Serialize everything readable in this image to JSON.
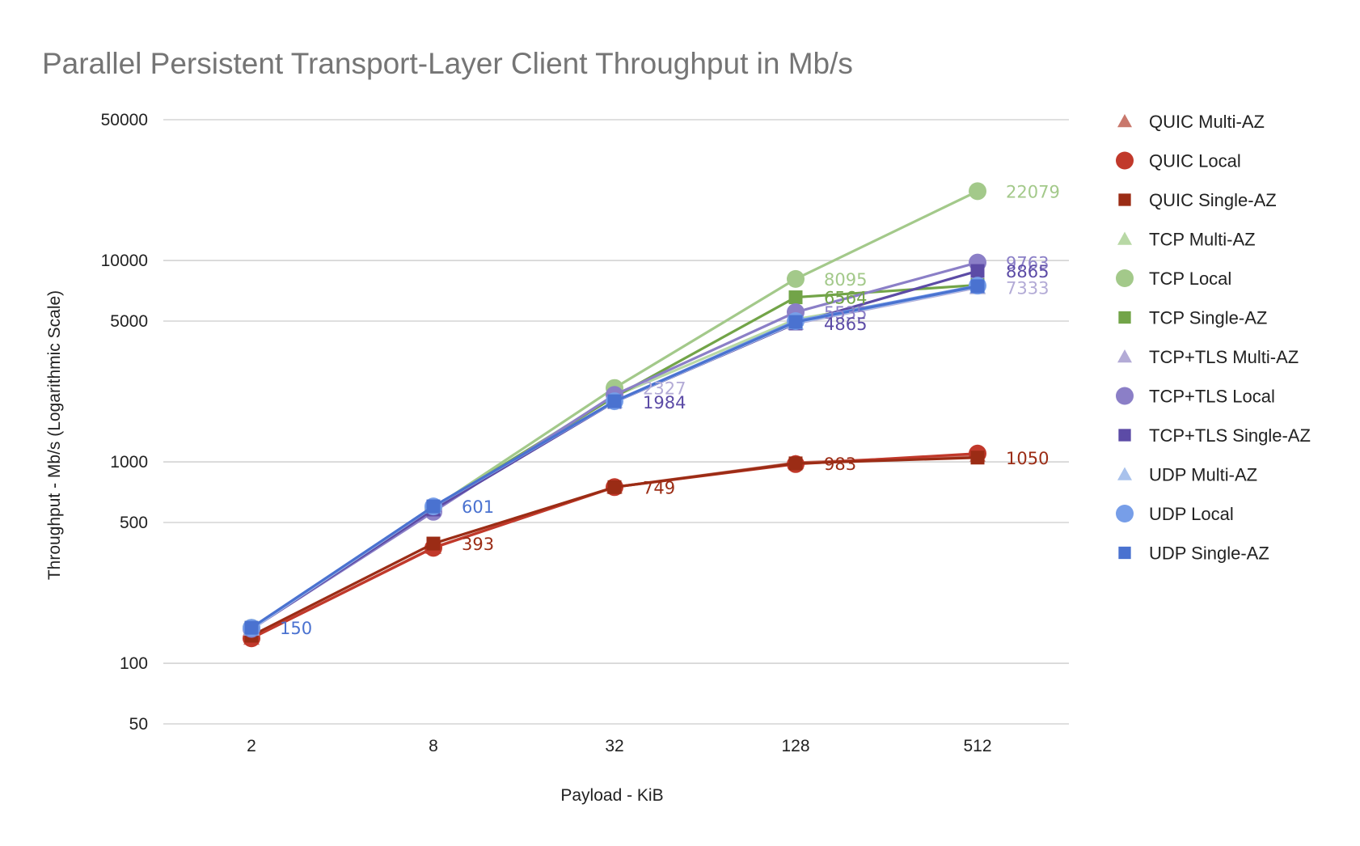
{
  "chart_data": {
    "type": "line",
    "title": "Parallel Persistent Transport-Layer Client Throughput in Mb/s",
    "xlabel": "Payload - KiB",
    "ylabel": "Throughput - Mb/s (Logarithmic Scale)",
    "yscale": "log",
    "ylim": [
      50,
      50000
    ],
    "yticks": [
      "50000",
      "10000",
      "5000",
      "1000",
      "500",
      "100",
      "50"
    ],
    "ytick_values": [
      50000,
      10000,
      5000,
      1000,
      500,
      100,
      50
    ],
    "categories": [
      "2",
      "8",
      "32",
      "128",
      "512"
    ],
    "grid": true,
    "legend_position": "right",
    "series": [
      {
        "name": "QUIC Multi-AZ",
        "marker": "triangle",
        "color": "#c9786c",
        "values": [
          133,
          376,
          749,
          990,
          1080
        ]
      },
      {
        "name": "QUIC Local",
        "marker": "circle",
        "color": "#c1392b",
        "values": [
          133,
          374,
          749,
          975,
          1100
        ]
      },
      {
        "name": "QUIC Single-AZ",
        "marker": "square",
        "color": "#9b2c15",
        "values": [
          137,
          393,
          749,
          983,
          1050
        ]
      },
      {
        "name": "TCP Multi-AZ",
        "marker": "triangle",
        "color": "#b8d8a5",
        "values": [
          150,
          590,
          2120,
          5100,
          7333
        ]
      },
      {
        "name": "TCP Local",
        "marker": "circle",
        "color": "#a3c98a",
        "values": [
          150,
          590,
          2327,
          8095,
          22079
        ]
      },
      {
        "name": "TCP Single-AZ",
        "marker": "square",
        "color": "#72a448",
        "values": [
          150,
          590,
          2100,
          6564,
          7550
        ]
      },
      {
        "name": "TCP+TLS Multi-AZ",
        "marker": "triangle",
        "color": "#b3abd6",
        "values": [
          148,
          580,
          2000,
          4865,
          7333
        ]
      },
      {
        "name": "TCP+TLS Local",
        "marker": "circle",
        "color": "#8b7fc7",
        "values": [
          148,
          565,
          2150,
          5535,
          9763
        ]
      },
      {
        "name": "TCP+TLS Single-AZ",
        "marker": "square",
        "color": "#5c4ba6",
        "values": [
          148,
          580,
          1984,
          4865,
          8865
        ]
      },
      {
        "name": "UDP Multi-AZ",
        "marker": "triangle",
        "color": "#a9c2ec",
        "values": [
          148,
          598,
          1990,
          4900,
          7400
        ]
      },
      {
        "name": "UDP Local",
        "marker": "circle",
        "color": "#779ee8",
        "values": [
          150,
          601,
          2000,
          5000,
          7500
        ]
      },
      {
        "name": "UDP Single-AZ",
        "marker": "square",
        "color": "#4a72d0",
        "values": [
          150,
          601,
          2000,
          4950,
          7450
        ]
      }
    ],
    "data_labels": [
      {
        "series": "TCP Local",
        "point": 4,
        "text": "22079",
        "color": "#a3c98a"
      },
      {
        "series": "TCP+TLS Local",
        "point": 4,
        "text": "9763",
        "color": "#8b7fc7"
      },
      {
        "series": "TCP+TLS Single-AZ",
        "point": 4,
        "text": "8865",
        "color": "#5c4ba6"
      },
      {
        "series": "TCP Multi-AZ",
        "point": 4,
        "text": "7333",
        "color": "#b3abd6"
      },
      {
        "series": "TCP Local",
        "point": 3,
        "text": "8095",
        "color": "#a3c98a"
      },
      {
        "series": "TCP Single-AZ",
        "point": 3,
        "text": "6564",
        "color": "#72a448"
      },
      {
        "series": "TCP+TLS Local",
        "point": 3,
        "text": "5535",
        "color": "#8b7fc7"
      },
      {
        "series": "TCP+TLS Single-AZ",
        "point": 3,
        "text": "4865",
        "color": "#5c4ba6"
      },
      {
        "series": "TCP Local",
        "point": 2,
        "text": "2327",
        "color": "#b3abd6"
      },
      {
        "series": "TCP+TLS Single-AZ",
        "point": 2,
        "text": "1984",
        "color": "#5c4ba6"
      },
      {
        "series": "QUIC Single-AZ",
        "point": 4,
        "text": "1050",
        "color": "#9b2c15"
      },
      {
        "series": "QUIC Single-AZ",
        "point": 3,
        "text": "983",
        "color": "#9b2c15"
      },
      {
        "series": "QUIC Single-AZ",
        "point": 2,
        "text": "749",
        "color": "#9b2c15"
      },
      {
        "series": "UDP Local",
        "point": 1,
        "text": "601",
        "color": "#4a72d0"
      },
      {
        "series": "QUIC Single-AZ",
        "point": 1,
        "text": "393",
        "color": "#9b2c15"
      },
      {
        "series": "UDP Local",
        "point": 0,
        "text": "150",
        "color": "#4a72d0"
      }
    ]
  }
}
